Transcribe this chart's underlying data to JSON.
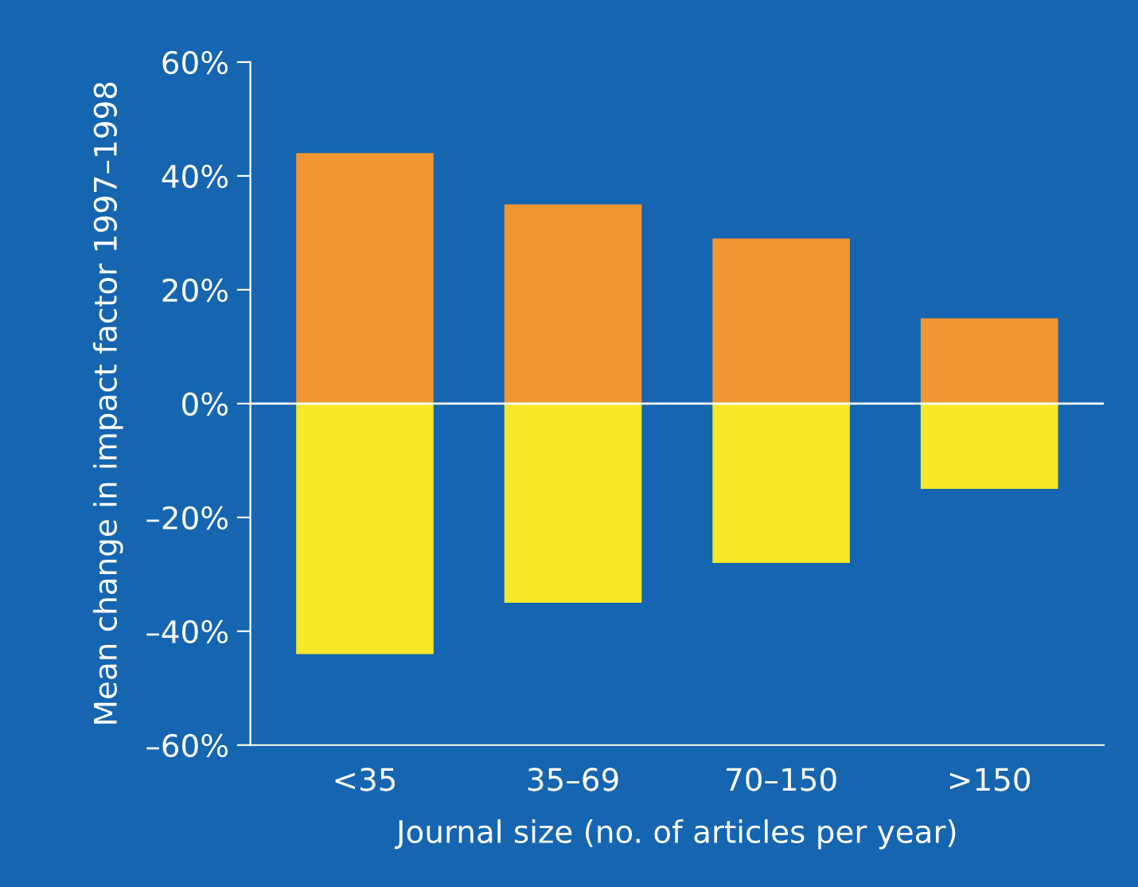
{
  "chart_data": {
    "type": "bar",
    "stacked": true,
    "xlabel": "Journal size (no. of articles per year)",
    "ylabel": "Mean change in impact factor 1997–1998",
    "categories": [
      "<35",
      "35–69",
      "70–150",
      ">150"
    ],
    "series": [
      {
        "color": "#f39530",
        "values": [
          44,
          35,
          29,
          15
        ]
      },
      {
        "color": "#f7e82a",
        "values": [
          -44,
          -35,
          -28,
          -15
        ]
      }
    ],
    "ylim": [
      -60,
      60
    ],
    "yticks": [
      {
        "value": -60,
        "label": "–60%"
      },
      {
        "value": -40,
        "label": "–40%"
      },
      {
        "value": -20,
        "label": "–20%"
      },
      {
        "value": 0,
        "label": "0%"
      },
      {
        "value": 20,
        "label": "20%"
      },
      {
        "value": 40,
        "label": "40%"
      },
      {
        "value": 60,
        "label": "60%"
      }
    ],
    "ref_lines": [
      {
        "axis": "y",
        "value": 0,
        "label": null,
        "color": "#ffffff"
      }
    ],
    "grid": false,
    "legend": false
  }
}
